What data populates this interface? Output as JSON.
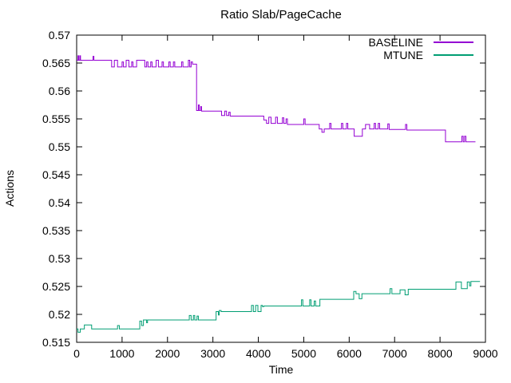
{
  "chart_data": {
    "type": "line",
    "title": "Ratio Slab/PageCache",
    "xlabel": "Time",
    "ylabel": "Actions",
    "xlim": [
      0,
      9000
    ],
    "ylim": [
      0.515,
      0.57
    ],
    "grid": false,
    "legend_position": "top-right-inside",
    "x_tick_values": [
      0,
      1000,
      2000,
      3000,
      4000,
      5000,
      6000,
      7000,
      8000,
      9000
    ],
    "x_tick_labels": [
      "0",
      "1000",
      "2000",
      "3000",
      "4000",
      "5000",
      "6000",
      "7000",
      "8000",
      "9000"
    ],
    "y_tick_values": [
      0.515,
      0.52,
      0.525,
      0.53,
      0.535,
      0.54,
      0.545,
      0.55,
      0.555,
      0.56,
      0.565,
      0.57
    ],
    "y_tick_labels": [
      "0.515",
      "0.52",
      "0.525",
      "0.53",
      "0.535",
      "0.54",
      "0.545",
      "0.55",
      "0.555",
      "0.56",
      "0.565",
      "0.57"
    ],
    "series": [
      {
        "name": "BASELINE",
        "color": "#9400D3",
        "points": [
          [
            0,
            0.5655
          ],
          [
            30,
            0.5655
          ],
          [
            30,
            0.5663
          ],
          [
            45,
            0.5663
          ],
          [
            45,
            0.5655
          ],
          [
            70,
            0.5655
          ],
          [
            70,
            0.5663
          ],
          [
            85,
            0.5663
          ],
          [
            85,
            0.5655
          ],
          [
            360,
            0.5655
          ],
          [
            360,
            0.5662
          ],
          [
            380,
            0.5662
          ],
          [
            380,
            0.5655
          ],
          [
            770,
            0.5655
          ],
          [
            770,
            0.5643
          ],
          [
            830,
            0.5643
          ],
          [
            830,
            0.5655
          ],
          [
            900,
            0.5655
          ],
          [
            900,
            0.5643
          ],
          [
            1000,
            0.5643
          ],
          [
            1000,
            0.5652
          ],
          [
            1030,
            0.5652
          ],
          [
            1030,
            0.5643
          ],
          [
            1090,
            0.5643
          ],
          [
            1090,
            0.5655
          ],
          [
            1150,
            0.5655
          ],
          [
            1150,
            0.5643
          ],
          [
            1210,
            0.5643
          ],
          [
            1210,
            0.5652
          ],
          [
            1240,
            0.5652
          ],
          [
            1240,
            0.5643
          ],
          [
            1320,
            0.5643
          ],
          [
            1320,
            0.5655
          ],
          [
            1500,
            0.5655
          ],
          [
            1500,
            0.5643
          ],
          [
            1540,
            0.5643
          ],
          [
            1540,
            0.5652
          ],
          [
            1570,
            0.5652
          ],
          [
            1570,
            0.5643
          ],
          [
            1630,
            0.5643
          ],
          [
            1630,
            0.5652
          ],
          [
            1660,
            0.5652
          ],
          [
            1660,
            0.5643
          ],
          [
            1750,
            0.5643
          ],
          [
            1750,
            0.5655
          ],
          [
            1800,
            0.5655
          ],
          [
            1800,
            0.5643
          ],
          [
            1880,
            0.5643
          ],
          [
            1880,
            0.5652
          ],
          [
            1910,
            0.5652
          ],
          [
            1910,
            0.5643
          ],
          [
            2030,
            0.5643
          ],
          [
            2030,
            0.5652
          ],
          [
            2060,
            0.5652
          ],
          [
            2060,
            0.5643
          ],
          [
            2130,
            0.5643
          ],
          [
            2130,
            0.5652
          ],
          [
            2160,
            0.5652
          ],
          [
            2160,
            0.5643
          ],
          [
            2310,
            0.5643
          ],
          [
            2310,
            0.5652
          ],
          [
            2340,
            0.5652
          ],
          [
            2340,
            0.5643
          ],
          [
            2460,
            0.5643
          ],
          [
            2460,
            0.5655
          ],
          [
            2490,
            0.5655
          ],
          [
            2490,
            0.5643
          ],
          [
            2520,
            0.5643
          ],
          [
            2520,
            0.5652
          ],
          [
            2550,
            0.5652
          ],
          [
            2550,
            0.5648
          ],
          [
            2640,
            0.5648
          ],
          [
            2640,
            0.5565
          ],
          [
            2680,
            0.5565
          ],
          [
            2680,
            0.5575
          ],
          [
            2700,
            0.5575
          ],
          [
            2700,
            0.5565
          ],
          [
            2730,
            0.5565
          ],
          [
            2730,
            0.5572
          ],
          [
            2750,
            0.5572
          ],
          [
            2750,
            0.5564
          ],
          [
            3190,
            0.5564
          ],
          [
            3190,
            0.5556
          ],
          [
            3260,
            0.5556
          ],
          [
            3260,
            0.5564
          ],
          [
            3300,
            0.5564
          ],
          [
            3300,
            0.5556
          ],
          [
            3350,
            0.5556
          ],
          [
            3350,
            0.5562
          ],
          [
            3380,
            0.5562
          ],
          [
            3380,
            0.5555
          ],
          [
            4120,
            0.5555
          ],
          [
            4120,
            0.5548
          ],
          [
            4180,
            0.5548
          ],
          [
            4180,
            0.5542
          ],
          [
            4230,
            0.5542
          ],
          [
            4230,
            0.5553
          ],
          [
            4280,
            0.5553
          ],
          [
            4280,
            0.5542
          ],
          [
            4380,
            0.5542
          ],
          [
            4380,
            0.5553
          ],
          [
            4420,
            0.5553
          ],
          [
            4420,
            0.5542
          ],
          [
            4530,
            0.5542
          ],
          [
            4530,
            0.5552
          ],
          [
            4560,
            0.5552
          ],
          [
            4560,
            0.5542
          ],
          [
            4610,
            0.5542
          ],
          [
            4610,
            0.555
          ],
          [
            4640,
            0.555
          ],
          [
            4640,
            0.554
          ],
          [
            5000,
            0.554
          ],
          [
            5000,
            0.555
          ],
          [
            5030,
            0.555
          ],
          [
            5030,
            0.554
          ],
          [
            5340,
            0.554
          ],
          [
            5340,
            0.5532
          ],
          [
            5400,
            0.5532
          ],
          [
            5400,
            0.5526
          ],
          [
            5450,
            0.5526
          ],
          [
            5450,
            0.5532
          ],
          [
            5570,
            0.5532
          ],
          [
            5570,
            0.5542
          ],
          [
            5600,
            0.5542
          ],
          [
            5600,
            0.5532
          ],
          [
            5830,
            0.5532
          ],
          [
            5830,
            0.5542
          ],
          [
            5860,
            0.5542
          ],
          [
            5860,
            0.5532
          ],
          [
            5940,
            0.5532
          ],
          [
            5940,
            0.5542
          ],
          [
            5970,
            0.5542
          ],
          [
            5970,
            0.5532
          ],
          [
            6110,
            0.5532
          ],
          [
            6110,
            0.5519
          ],
          [
            6290,
            0.5519
          ],
          [
            6290,
            0.5532
          ],
          [
            6360,
            0.5532
          ],
          [
            6360,
            0.554
          ],
          [
            6450,
            0.554
          ],
          [
            6450,
            0.5532
          ],
          [
            6550,
            0.5532
          ],
          [
            6550,
            0.5542
          ],
          [
            6580,
            0.5542
          ],
          [
            6580,
            0.5532
          ],
          [
            6640,
            0.5532
          ],
          [
            6640,
            0.5542
          ],
          [
            6670,
            0.5542
          ],
          [
            6670,
            0.5532
          ],
          [
            6850,
            0.5532
          ],
          [
            6850,
            0.5541
          ],
          [
            6880,
            0.5541
          ],
          [
            6880,
            0.5531
          ],
          [
            7240,
            0.5531
          ],
          [
            7240,
            0.554
          ],
          [
            7270,
            0.554
          ],
          [
            7270,
            0.553
          ],
          [
            8120,
            0.553
          ],
          [
            8120,
            0.5509
          ],
          [
            8480,
            0.5509
          ],
          [
            8480,
            0.5519
          ],
          [
            8510,
            0.5519
          ],
          [
            8510,
            0.5509
          ],
          [
            8540,
            0.5509
          ],
          [
            8540,
            0.5519
          ],
          [
            8570,
            0.5519
          ],
          [
            8570,
            0.5509
          ],
          [
            8780,
            0.5509
          ]
        ]
      },
      {
        "name": "MTUNE",
        "color": "#009E73",
        "points": [
          [
            0,
            0.5174
          ],
          [
            30,
            0.5174
          ],
          [
            30,
            0.5168
          ],
          [
            80,
            0.5168
          ],
          [
            80,
            0.5174
          ],
          [
            170,
            0.5174
          ],
          [
            170,
            0.5181
          ],
          [
            330,
            0.5181
          ],
          [
            330,
            0.5174
          ],
          [
            900,
            0.5174
          ],
          [
            900,
            0.518
          ],
          [
            940,
            0.518
          ],
          [
            940,
            0.5174
          ],
          [
            1390,
            0.5174
          ],
          [
            1390,
            0.5188
          ],
          [
            1430,
            0.5188
          ],
          [
            1430,
            0.518
          ],
          [
            1470,
            0.518
          ],
          [
            1470,
            0.519
          ],
          [
            1540,
            0.519
          ],
          [
            1540,
            0.5185
          ],
          [
            1560,
            0.5185
          ],
          [
            1560,
            0.519
          ],
          [
            2480,
            0.519
          ],
          [
            2480,
            0.5198
          ],
          [
            2520,
            0.5198
          ],
          [
            2520,
            0.519
          ],
          [
            2570,
            0.519
          ],
          [
            2570,
            0.5198
          ],
          [
            2600,
            0.5198
          ],
          [
            2600,
            0.519
          ],
          [
            2650,
            0.519
          ],
          [
            2650,
            0.5197
          ],
          [
            2680,
            0.5197
          ],
          [
            2680,
            0.519
          ],
          [
            3070,
            0.519
          ],
          [
            3070,
            0.5205
          ],
          [
            3120,
            0.5205
          ],
          [
            3120,
            0.5199
          ],
          [
            3140,
            0.5199
          ],
          [
            3140,
            0.5207
          ],
          [
            3180,
            0.5207
          ],
          [
            3180,
            0.5205
          ],
          [
            3850,
            0.5205
          ],
          [
            3850,
            0.5216
          ],
          [
            3890,
            0.5216
          ],
          [
            3890,
            0.5205
          ],
          [
            3940,
            0.5205
          ],
          [
            3940,
            0.5216
          ],
          [
            3990,
            0.5216
          ],
          [
            3990,
            0.5205
          ],
          [
            4060,
            0.5205
          ],
          [
            4060,
            0.5216
          ],
          [
            4090,
            0.5216
          ],
          [
            4090,
            0.5214
          ],
          [
            4120,
            0.5214
          ],
          [
            4120,
            0.5215
          ],
          [
            4950,
            0.5215
          ],
          [
            4950,
            0.5226
          ],
          [
            4980,
            0.5226
          ],
          [
            4980,
            0.5215
          ],
          [
            5130,
            0.5215
          ],
          [
            5130,
            0.5226
          ],
          [
            5160,
            0.5226
          ],
          [
            5160,
            0.5215
          ],
          [
            5230,
            0.5215
          ],
          [
            5230,
            0.5224
          ],
          [
            5260,
            0.5224
          ],
          [
            5260,
            0.5215
          ],
          [
            5355,
            0.5215
          ],
          [
            5355,
            0.5227
          ],
          [
            6100,
            0.5227
          ],
          [
            6100,
            0.5241
          ],
          [
            6150,
            0.5241
          ],
          [
            6150,
            0.5237
          ],
          [
            6220,
            0.5237
          ],
          [
            6220,
            0.5228
          ],
          [
            6280,
            0.5228
          ],
          [
            6280,
            0.5237
          ],
          [
            6900,
            0.5237
          ],
          [
            6900,
            0.5246
          ],
          [
            6940,
            0.5246
          ],
          [
            6940,
            0.5237
          ],
          [
            7120,
            0.5237
          ],
          [
            7120,
            0.5244
          ],
          [
            7230,
            0.5244
          ],
          [
            7230,
            0.5235
          ],
          [
            7300,
            0.5235
          ],
          [
            7300,
            0.5245
          ],
          [
            8350,
            0.5245
          ],
          [
            8350,
            0.5258
          ],
          [
            8470,
            0.5258
          ],
          [
            8470,
            0.5246
          ],
          [
            8600,
            0.5246
          ],
          [
            8600,
            0.5258
          ],
          [
            8650,
            0.5258
          ],
          [
            8650,
            0.5251
          ],
          [
            8680,
            0.5251
          ],
          [
            8680,
            0.5259
          ],
          [
            8880,
            0.5259
          ]
        ]
      }
    ]
  },
  "colors": {
    "axis": "#000000",
    "text": "#000000",
    "background": "#ffffff"
  }
}
